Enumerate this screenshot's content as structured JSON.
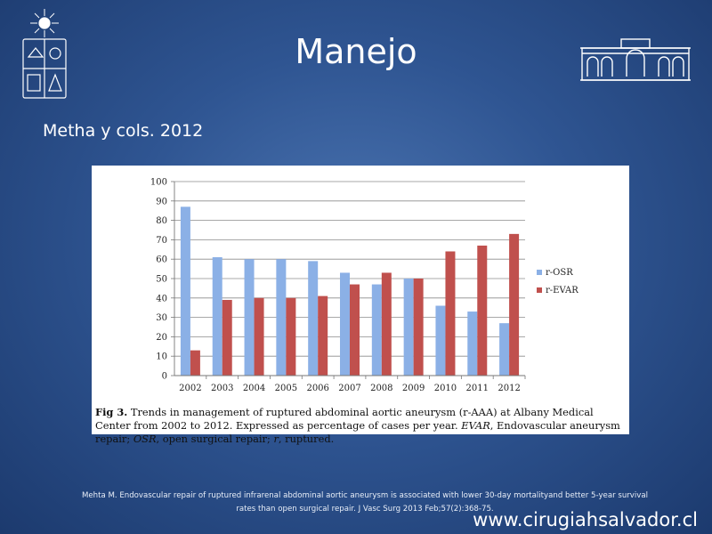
{
  "slide": {
    "title": "Manejo",
    "subtitle": "Metha y cols. 2012",
    "caption_fig": "Fig 3.",
    "caption_text_1": "Trends in management of ruptured abdominal aortic aneurysm (r-AAA) at Albany Medical Center from 2002 to 2012. Expressed as percentage of cases per year.",
    "caption_evar_abbr": "EVAR",
    "caption_text_2": ", Endovascular aneurysm repair;",
    "caption_osr_abbr": "OSR",
    "caption_text_3": ", open surgical repair;",
    "caption_r_abbr": "r",
    "caption_text_4": ", ruptured.",
    "reference_line1": "Mehta M. Endovascular repair of ruptured infrarenal abdominal aortic aneurysm is associated with lower 30-day mortalityand better 5-year survival",
    "reference_line2": "rates than open surgical repair. J Vasc Surg 2013 Feb;57(2):368-75.",
    "website": "www.cirugiahsalvador.cl"
  },
  "colors": {
    "osr": "#8bb0e6",
    "evar": "#c0504d",
    "background": "#2f5592"
  },
  "chart_data": {
    "type": "bar",
    "categories": [
      "2002",
      "2003",
      "2004",
      "2005",
      "2006",
      "2007",
      "2008",
      "2009",
      "2010",
      "2011",
      "2012"
    ],
    "series": [
      {
        "name": "r-OSR",
        "values": [
          87,
          61,
          60,
          60,
          59,
          53,
          47,
          50,
          36,
          33,
          27
        ]
      },
      {
        "name": "r-EVAR",
        "values": [
          13,
          39,
          40,
          40,
          41,
          47,
          53,
          50,
          64,
          67,
          73
        ]
      }
    ],
    "yticks": [
      0,
      10,
      20,
      30,
      40,
      50,
      60,
      70,
      80,
      90,
      100
    ],
    "ylim": [
      0,
      100
    ],
    "grid": true,
    "legend": "right"
  }
}
